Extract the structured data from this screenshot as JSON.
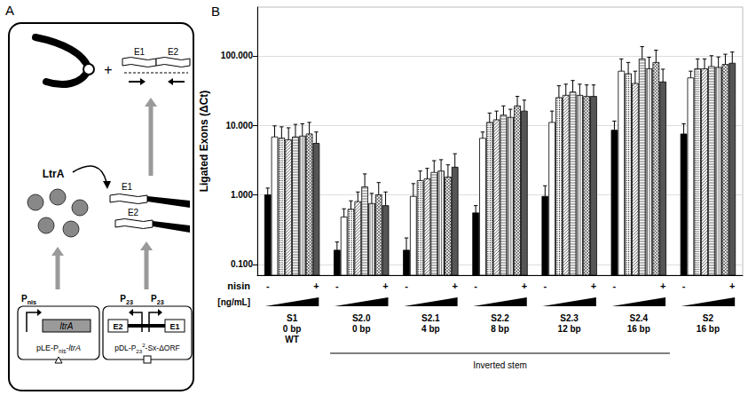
{
  "panel_a": {
    "letter": "A",
    "plus": "+",
    "ligated_exons": [
      "E1",
      "E2"
    ],
    "protein": "LtrA",
    "precursor_exons": [
      "E1",
      "E2"
    ],
    "plasmid_1": {
      "name": [
        {
          "text": "pLE-P"
        },
        {
          "text": "nis",
          "sub": true
        },
        {
          "text": "-"
        },
        {
          "text": "ltrA",
          "italic": true
        }
      ],
      "promoter": [
        {
          "text": "P"
        },
        {
          "text": "nis",
          "sub": true
        }
      ],
      "gene": "ltrA"
    },
    "plasmid_2": {
      "name": [
        {
          "text": "pDL-P"
        },
        {
          "text": "23",
          "sub": true
        },
        {
          "text": "2",
          "sup": true
        },
        {
          "text": "-Sx-ΔORF"
        }
      ],
      "promoter": [
        {
          "text": "P"
        },
        {
          "text": "23",
          "sub": true
        }
      ],
      "exons": [
        "E2",
        "E1"
      ]
    }
  },
  "panel_b_letter": "B",
  "chart_data": {
    "type": "bar",
    "y_label": "Ligated Exons (ΔCt)",
    "categories": [
      "S1\n0 bp\nWT",
      "S2.0\n0 bp",
      "S2.1\n4 bp",
      "S2.2\n8 bp",
      "S2.3\n12 bp",
      "S2.4\n16 bp",
      "S2\n16 bp"
    ],
    "x_rows": {
      "nisin": "nisin",
      "low": "-",
      "high": "+",
      "concentration": "[ng/mL]"
    },
    "group_bracket": {
      "label": "Inverted stem",
      "first": "S2.0\n0 bp",
      "last": "S2.4\n16 bp"
    },
    "log": "y",
    "ylim": [
      0.07,
      500
    ],
    "yticks": [
      {
        "value": 0.1,
        "label": "0.100"
      },
      {
        "value": 1,
        "label": "1.000"
      },
      {
        "value": 10,
        "label": "10.000"
      },
      {
        "value": 100,
        "label": "100.000"
      }
    ],
    "grid": true,
    "series": [
      {
        "color": "#000000",
        "values": [
          1.0,
          0.16,
          0.16,
          0.55,
          0.95,
          8.5,
          7.5
        ],
        "errors": [
          0.25,
          0.05,
          0.08,
          0.15,
          0.4,
          3,
          3
        ]
      },
      {
        "color": "#ffffff",
        "values": [
          6.8,
          0.48,
          0.95,
          6.5,
          11,
          60,
          48
        ],
        "errors": [
          3,
          0.15,
          0.5,
          1.5,
          5,
          30,
          12
        ]
      },
      {
        "color": "#ffffff",
        "values": [
          6.5,
          0.62,
          1.6,
          11,
          25,
          55,
          65
        ],
        "errors": [
          3,
          0.2,
          0.6,
          4,
          12,
          25,
          25
        ]
      },
      {
        "color": "#ffffff",
        "values": [
          6.2,
          0.8,
          1.7,
          12,
          27,
          40,
          65
        ],
        "errors": [
          3,
          0.3,
          0.7,
          4,
          12,
          20,
          25
        ]
      },
      {
        "color": "#ffffff",
        "values": [
          6.8,
          1.3,
          2.1,
          14,
          30,
          90,
          70
        ],
        "errors": [
          3.5,
          0.7,
          1.0,
          5,
          14,
          45,
          30
        ]
      },
      {
        "color": "#ffffff",
        "values": [
          7.0,
          0.75,
          2.2,
          13,
          27,
          65,
          68
        ],
        "errors": [
          3.5,
          0.3,
          1.0,
          4,
          12,
          30,
          28
        ]
      },
      {
        "color": "#ffffff",
        "values": [
          7.5,
          1.0,
          1.8,
          19,
          26,
          80,
          75
        ],
        "errors": [
          3.5,
          0.5,
          0.9,
          7,
          12,
          40,
          30
        ]
      },
      {
        "color": "#555555",
        "values": [
          5.5,
          0.7,
          2.5,
          16,
          26,
          42,
          78
        ],
        "errors": [
          2.5,
          0.4,
          1.4,
          7,
          12,
          22,
          35
        ]
      }
    ]
  }
}
